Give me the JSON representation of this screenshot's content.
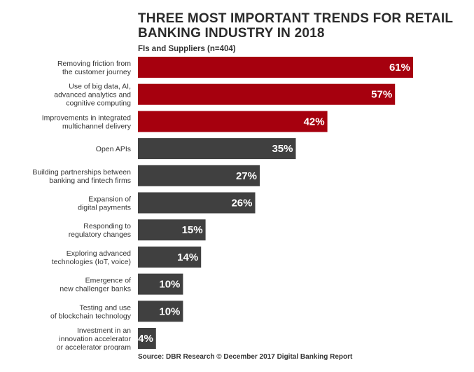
{
  "chart_data": {
    "type": "bar",
    "orientation": "horizontal",
    "title": "THREE MOST IMPORTANT TRENDS FOR RETAIL BANKING INDUSTRY IN 2018",
    "subtitle": "FIs and Suppliers (n=404)",
    "source": "Source: DBR Research © December 2017 Digital Banking Report",
    "categories": [
      [
        "Removing friction from",
        "the customer journey"
      ],
      [
        "Use of big data, AI,",
        "advanced analytics and",
        "cognitive computing"
      ],
      [
        "Improvements in integrated",
        "multichannel delivery"
      ],
      [
        "Open APIs"
      ],
      [
        "Building partnerships between",
        "banking and fintech firms"
      ],
      [
        "Expansion of",
        "digital payments"
      ],
      [
        "Responding to",
        "regulatory changes"
      ],
      [
        "Exploring advanced",
        "technologies (IoT, voice)"
      ],
      [
        "Emergence of",
        "new challenger banks"
      ],
      [
        "Testing and use",
        "of blockchain technology"
      ],
      [
        "Investment in an",
        "innovation accelerator",
        "or accelerator program"
      ]
    ],
    "values": [
      61,
      57,
      42,
      35,
      27,
      26,
      15,
      14,
      10,
      10,
      4
    ],
    "value_labels": [
      "61%",
      "57%",
      "42%",
      "35%",
      "27%",
      "26%",
      "15%",
      "14%",
      "10%",
      "10%",
      "4%"
    ],
    "highlighted_count": 3,
    "colors": {
      "highlight": "#a6000e",
      "default": "#404040"
    },
    "xlim": [
      0,
      61
    ]
  }
}
